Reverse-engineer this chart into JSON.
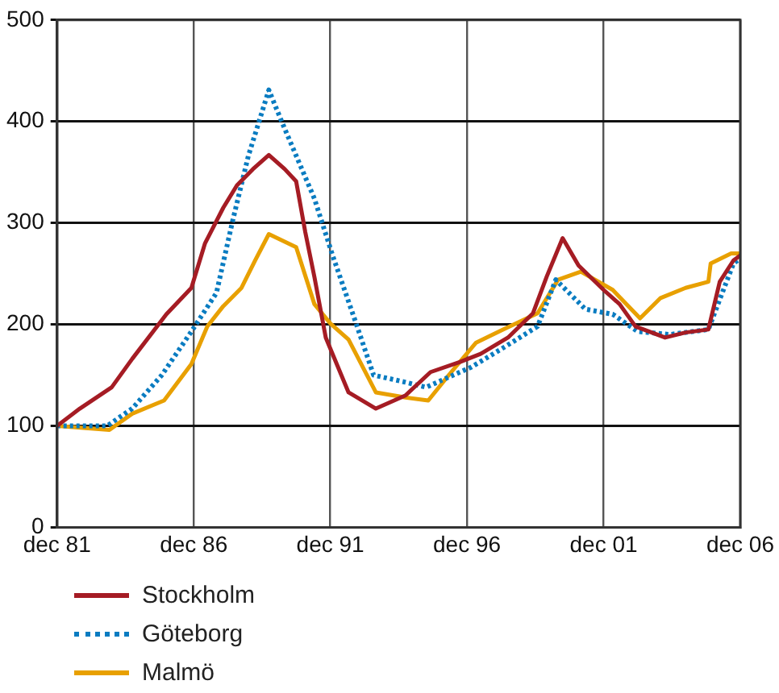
{
  "chart_data": {
    "type": "line",
    "xlim": [
      "1981-12",
      "2006-12"
    ],
    "xticks": [
      {
        "value": "1981-12",
        "label": "dec 81"
      },
      {
        "value": "1986-12",
        "label": "dec 86"
      },
      {
        "value": "1991-12",
        "label": "dec 91"
      },
      {
        "value": "1996-12",
        "label": "dec 96"
      },
      {
        "value": "2001-12",
        "label": "dec 01"
      },
      {
        "value": "2006-12",
        "label": "dec 06"
      }
    ],
    "ylim": [
      0,
      500
    ],
    "yticks": [
      0,
      100,
      200,
      300,
      400,
      500
    ],
    "grid": true,
    "legend": "bottom left",
    "marker": "none",
    "series": [
      {
        "name": "Stockholm",
        "color": "#a51c24",
        "line_style": "solid",
        "x": [
          "1981-12",
          "1982-10",
          "1983-12",
          "1984-09",
          "1985-12",
          "1986-11",
          "1987-05",
          "1988-01",
          "1988-07",
          "1989-02",
          "1989-09",
          "1990-04",
          "1990-09",
          "1991-01",
          "1991-05",
          "1991-10",
          "1992-08",
          "1993-08",
          "1994-09",
          "1995-08",
          "1996-09",
          "1997-06",
          "1998-06",
          "1999-05",
          "1999-11",
          "2000-06",
          "2001-01",
          "2001-12",
          "2002-07",
          "2003-02",
          "2004-03",
          "2004-12",
          "2005-10",
          "2006-03",
          "2006-09",
          "2006-12"
        ],
        "values": [
          100,
          117,
          138,
          166,
          210,
          236,
          280,
          315,
          337,
          353,
          367,
          353,
          341,
          291,
          247,
          187,
          133,
          117,
          130,
          153,
          163,
          171,
          187,
          211,
          247,
          285,
          258,
          234,
          220,
          198,
          187,
          192,
          195,
          242,
          263,
          268
        ]
      },
      {
        "name": "Göteborg",
        "color": "#0a7cc1",
        "line_style": "dotted",
        "x": [
          "1981-12",
          "1983-10",
          "1984-09",
          "1985-10",
          "1986-11",
          "1987-10",
          "1988-05",
          "1988-12",
          "1989-09",
          "1990-03",
          "1990-10",
          "1991-05",
          "1992-01",
          "1992-11",
          "1993-07",
          "1994-09",
          "1995-06",
          "1997-02",
          "1998-04",
          "1999-07",
          "2000-03",
          "2001-04",
          "2002-04",
          "2003-03",
          "2004-05",
          "2005-10",
          "2006-09",
          "2006-12"
        ],
        "values": [
          100,
          100,
          117,
          150,
          193,
          231,
          301,
          366,
          431,
          398,
          361,
          324,
          268,
          203,
          150,
          143,
          138,
          158,
          177,
          198,
          244,
          215,
          210,
          193,
          190,
          195,
          260,
          265
        ]
      },
      {
        "name": "Malmö",
        "color": "#e8a000",
        "line_style": "solid",
        "x": [
          "1981-12",
          "1983-11",
          "1984-09",
          "1985-11",
          "1986-11",
          "1987-06",
          "1988-01",
          "1988-09",
          "1989-03",
          "1989-09",
          "1990-09",
          "1991-05",
          "1991-12",
          "1992-08",
          "1993-08",
          "1994-09",
          "1995-07",
          "1996-04",
          "1997-04",
          "1998-04",
          "1999-07",
          "2000-04",
          "2001-02",
          "2002-04",
          "2003-04",
          "2004-01",
          "2004-12",
          "2005-10",
          "2005-11",
          "2006-08",
          "2006-12"
        ],
        "values": [
          100,
          96,
          112,
          125,
          161,
          198,
          218,
          236,
          263,
          289,
          276,
          220,
          201,
          185,
          133,
          128,
          125,
          150,
          182,
          195,
          211,
          244,
          252,
          234,
          206,
          226,
          236,
          242,
          260,
          270,
          270
        ]
      }
    ]
  }
}
